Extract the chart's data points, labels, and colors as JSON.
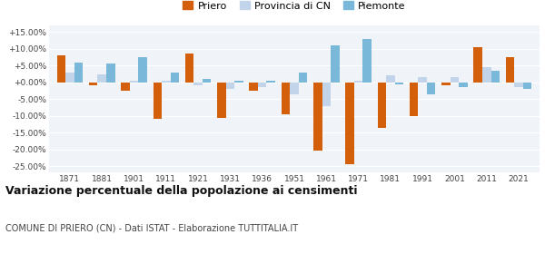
{
  "years": [
    1871,
    1881,
    1901,
    1911,
    1921,
    1931,
    1936,
    1951,
    1961,
    1971,
    1981,
    1991,
    2001,
    2011,
    2021
  ],
  "priero": [
    8.0,
    -1.0,
    -2.5,
    -11.0,
    8.5,
    -10.5,
    -2.5,
    -9.5,
    -20.5,
    -24.5,
    -13.5,
    -10.0,
    -1.0,
    10.5,
    7.5
  ],
  "provincia": [
    3.0,
    2.5,
    0.5,
    0.5,
    -1.0,
    -2.0,
    -1.5,
    -3.5,
    -7.0,
    0.5,
    2.0,
    1.5,
    1.5,
    4.5,
    -1.5
  ],
  "piemonte": [
    6.0,
    5.5,
    7.5,
    3.0,
    1.0,
    0.5,
    0.5,
    3.0,
    11.0,
    13.0,
    -0.5,
    -3.5,
    -1.5,
    3.5,
    -2.0
  ],
  "priero_color": "#d45f0a",
  "provincia_color": "#c2d4ea",
  "piemonte_color": "#7ab8d9",
  "title": "Variazione percentuale della popolazione ai censimenti",
  "subtitle": "COMUNE DI PRIERO (CN) - Dati ISTAT - Elaborazione TUTTITALIA.IT",
  "ylim": [
    -27,
    17
  ],
  "yticks": [
    -25.0,
    -20.0,
    -15.0,
    -10.0,
    -5.0,
    0.0,
    5.0,
    10.0,
    15.0
  ],
  "background_color": "#ffffff",
  "plot_bg_color": "#f0f4f8",
  "grid_color": "#ffffff"
}
